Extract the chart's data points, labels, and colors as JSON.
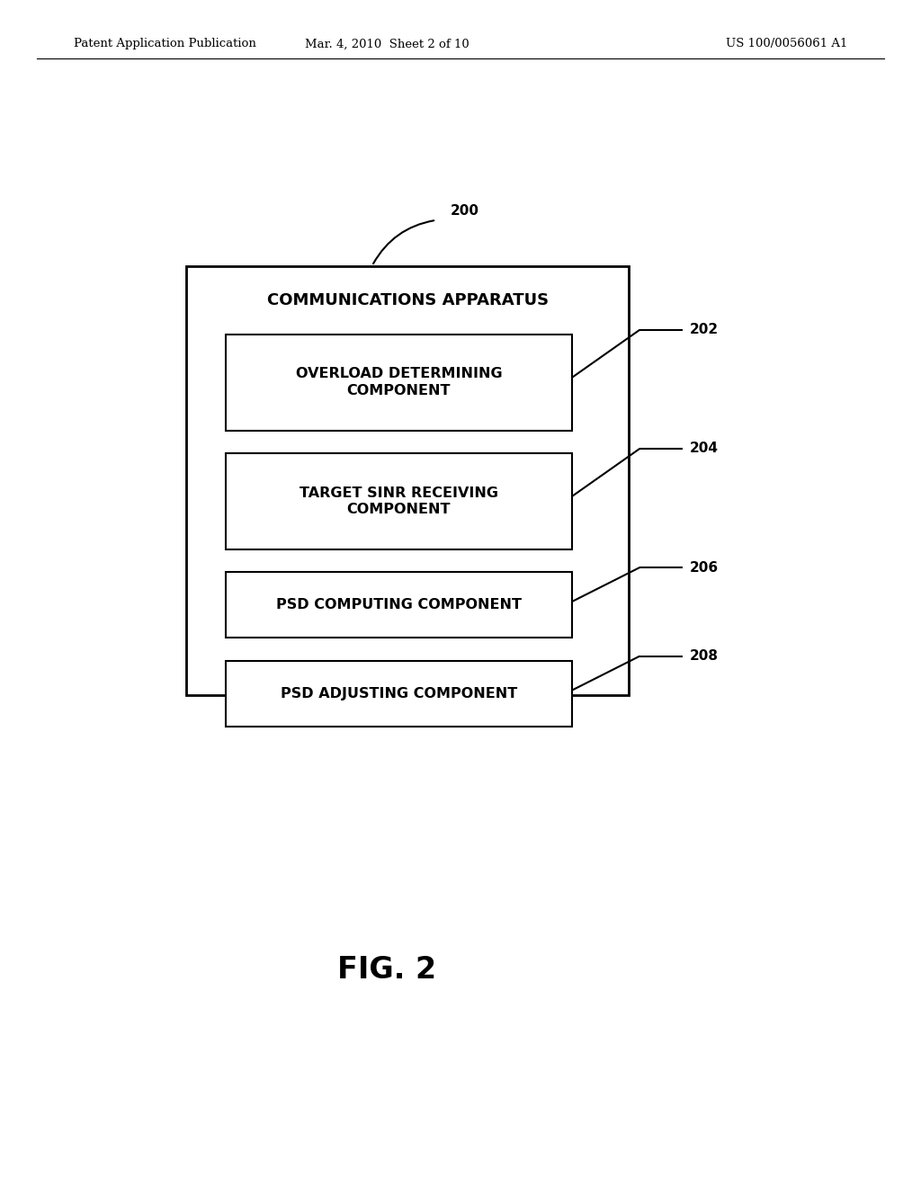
{
  "background_color": "#ffffff",
  "header_left": "Patent Application Publication",
  "header_mid": "Mar. 4, 2010  Sheet 2 of 10",
  "header_right": "US 100/0056061 A1",
  "fig_label": "FIG. 2",
  "outer_box_label": "COMMUNICATIONS APPARATUS",
  "outer_box_label_num": "200",
  "components": [
    {
      "label": "OVERLOAD DETERMINING\nCOMPONENT",
      "num": "202"
    },
    {
      "label": "TARGET SINR RECEIVING\nCOMPONENT",
      "num": "204"
    },
    {
      "label": "PSD COMPUTING COMPONENT",
      "num": "206"
    },
    {
      "label": "PSD ADJUSTING COMPONENT",
      "num": "208"
    }
  ]
}
